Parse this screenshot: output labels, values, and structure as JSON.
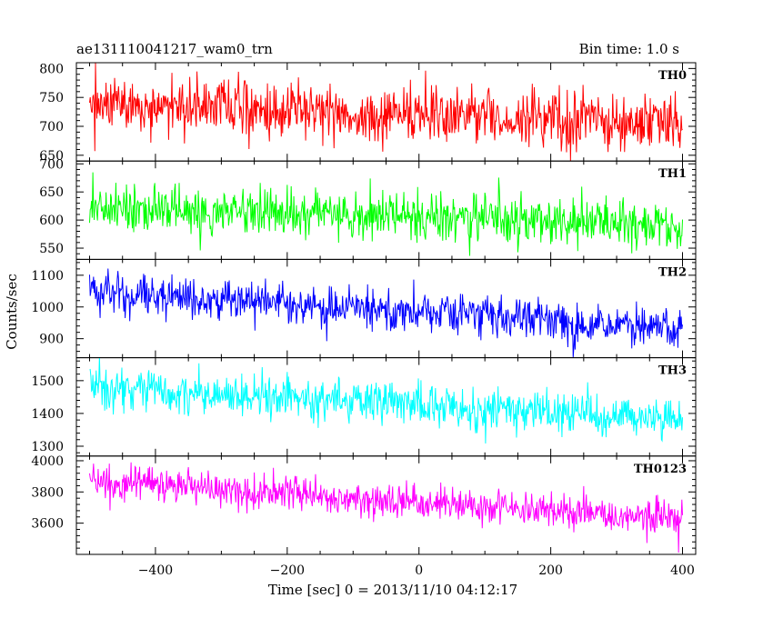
{
  "header": {
    "title": "ae131110041217_wam0_trn",
    "bin_time": "Bin time: 1.0 s"
  },
  "chart_data": {
    "type": "line",
    "xlabel": "Time [sec] 0 = 2013/11/10 04:12:17",
    "ylabel": "Counts/sec",
    "xlim": [
      -520,
      420
    ],
    "xticks": [
      -400,
      -200,
      0,
      200,
      400
    ],
    "x_start": -500,
    "x_end": 400,
    "bin_seconds": 1.0,
    "panels": [
      {
        "name": "TH0",
        "color": "#ff0000",
        "ylim": [
          640,
          810
        ],
        "yticks": [
          650,
          700,
          750,
          800
        ],
        "trend": {
          "start": 740,
          "end": 705,
          "noise_amplitude": 35
        }
      },
      {
        "name": "TH1",
        "color": "#00ff00",
        "ylim": [
          530,
          705
        ],
        "yticks": [
          550,
          600,
          650,
          700
        ],
        "trend": {
          "start": 625,
          "end": 590,
          "noise_amplitude": 30
        }
      },
      {
        "name": "TH2",
        "color": "#0000ff",
        "ylim": [
          840,
          1150
        ],
        "yticks": [
          900,
          1000,
          1100
        ],
        "trend": {
          "start": 1050,
          "end": 930,
          "noise_amplitude": 45
        }
      },
      {
        "name": "TH3",
        "color": "#00ffff",
        "ylim": [
          1270,
          1570
        ],
        "yticks": [
          1300,
          1400,
          1500
        ],
        "trend": {
          "start": 1480,
          "end": 1380,
          "noise_amplitude": 45
        }
      },
      {
        "name": "TH0123",
        "color": "#ff00ff",
        "ylim": [
          3400,
          4030
        ],
        "yticks": [
          3600,
          3800,
          4000
        ],
        "trend": {
          "start": 3880,
          "end": 3620,
          "noise_amplitude": 80
        }
      }
    ]
  }
}
